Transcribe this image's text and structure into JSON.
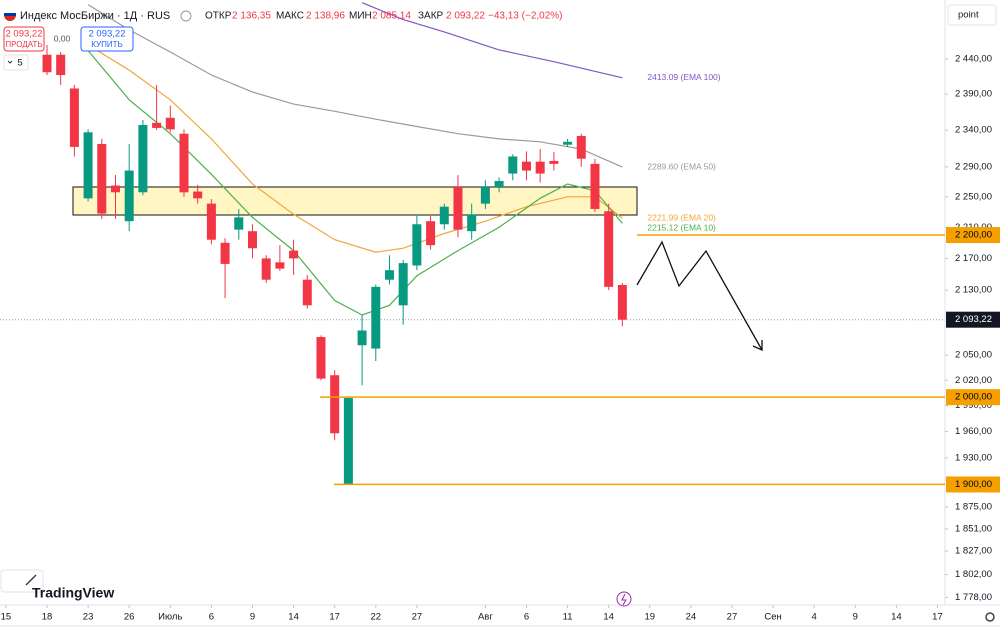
{
  "header": {
    "symbol": "Индекс МосБиржи · 1Д · RUS",
    "open_label": "ОТКР",
    "open": "2 136,35",
    "high_label": "МАКС",
    "high": "2 138,96",
    "low_label": "МИН",
    "low": "2 085,14",
    "close_label": "ЗАКР",
    "close": "2 093,22",
    "change": "−43,13 (−2,02%)"
  },
  "trade": {
    "sell_price": "2 093,22",
    "sell": "ПРОДАТЬ",
    "spread": "0,00",
    "buy_price": "2 093,22",
    "buy": "КУПИТЬ"
  },
  "interval": "5",
  "scale_mode": "point",
  "logo": "TradingView",
  "chart_data": {
    "type": "candlestick",
    "log_scale": true,
    "grid": false,
    "up_color": "#089981",
    "down_color": "#f23645",
    "ylim": [
      1770,
      2526
    ],
    "yticks": [
      {
        "value": 2440,
        "label": "2 440,00"
      },
      {
        "value": 2390,
        "label": "2 390,00"
      },
      {
        "value": 2340,
        "label": "2 340,00"
      },
      {
        "value": 2290,
        "label": "2 290,00"
      },
      {
        "value": 2250,
        "label": "2 250,00"
      },
      {
        "value": 2210,
        "label": "2 210,00"
      },
      {
        "value": 2170,
        "label": "2 170,00"
      },
      {
        "value": 2130,
        "label": "2 130,00"
      },
      {
        "value": 2050,
        "label": "2 050,00"
      },
      {
        "value": 2020,
        "label": "2 020,00"
      },
      {
        "value": 1990,
        "label": "1 990,00"
      },
      {
        "value": 1960,
        "label": "1 960,00"
      },
      {
        "value": 1930,
        "label": "1 930,00"
      },
      {
        "value": 1875,
        "label": "1 875,00"
      },
      {
        "value": 1851,
        "label": "1 851,00"
      },
      {
        "value": 1827,
        "label": "1 827,00"
      },
      {
        "value": 1802,
        "label": "1 802,00"
      },
      {
        "value": 1778,
        "label": "1 778,00"
      }
    ],
    "xlim": [
      -3.43,
      65.55
    ],
    "xticks": [
      {
        "value": -3,
        "label": "15"
      },
      {
        "value": 0,
        "label": "18"
      },
      {
        "value": 3,
        "label": "23"
      },
      {
        "value": 6,
        "label": "26"
      },
      {
        "value": 9,
        "label": "Июль"
      },
      {
        "value": 12,
        "label": "6"
      },
      {
        "value": 15,
        "label": "9"
      },
      {
        "value": 18,
        "label": "14"
      },
      {
        "value": 21,
        "label": "17"
      },
      {
        "value": 24,
        "label": "22"
      },
      {
        "value": 27,
        "label": "27"
      },
      {
        "value": 32,
        "label": "Авг"
      },
      {
        "value": 35,
        "label": "6"
      },
      {
        "value": 38,
        "label": "11"
      },
      {
        "value": 41,
        "label": "14"
      },
      {
        "value": 44,
        "label": "19"
      },
      {
        "value": 47,
        "label": "24"
      },
      {
        "value": 50,
        "label": "27"
      },
      {
        "value": 53,
        "label": "Сен"
      },
      {
        "value": 56,
        "label": "4"
      },
      {
        "value": 59,
        "label": "9"
      },
      {
        "value": 62,
        "label": "14"
      },
      {
        "value": 65,
        "label": "17"
      }
    ],
    "candles": {
      "open": [
        2446,
        2446,
        2398,
        2248,
        2321,
        2265,
        2218,
        2256,
        2350,
        2357,
        2335,
        2257,
        2241,
        2190,
        2207,
        2205,
        2170,
        2165,
        2180,
        2143,
        2072,
        2026,
        1900,
        2062,
        2058,
        2143,
        2111,
        2161,
        2218,
        2214,
        2263,
        2205,
        2241,
        2263,
        2281,
        2297,
        2297,
        2298,
        2320,
        2332,
        2294,
        2231,
        2136.35
      ],
      "high": [
        2460,
        2450,
        2403,
        2341,
        2328,
        2279,
        2321,
        2354,
        2403,
        2374,
        2341,
        2266,
        2247,
        2196,
        2234,
        2214,
        2174,
        2187,
        2194,
        2149,
        2074,
        2032,
        2000,
        2099,
        2137,
        2174,
        2168,
        2227,
        2227,
        2241,
        2279,
        2241,
        2272,
        2276,
        2307,
        2311,
        2314,
        2310,
        2328,
        2335,
        2301,
        2241,
        2138.96
      ],
      "low": [
        2417,
        2403,
        2304,
        2244,
        2221,
        2221,
        2205,
        2252,
        2340,
        2337,
        2250,
        2241,
        2188,
        2120,
        2194,
        2170,
        2139,
        2154,
        2149,
        2107,
        2020,
        1950,
        1900,
        2014,
        2043,
        2137,
        2087,
        2155,
        2181,
        2207,
        2197,
        2194,
        2234,
        2256,
        2272,
        2272,
        2269,
        2285,
        2317,
        2290,
        2230,
        2130,
        2085.14
      ],
      "close": [
        2421,
        2417,
        2317,
        2337,
        2228,
        2256,
        2285,
        2347,
        2343,
        2341,
        2256,
        2248,
        2194,
        2163,
        2223,
        2183,
        2143,
        2157,
        2170,
        2111,
        2022,
        1958,
        1999,
        2080,
        2134,
        2155,
        2164,
        2214,
        2187,
        2237,
        2207,
        2227,
        2263,
        2271,
        2304,
        2285,
        2281,
        2294,
        2324,
        2301,
        2234,
        2134,
        2093.22
      ]
    },
    "series": [
      {
        "name": "2413.09 (EMA 100)",
        "color": "#7e57c2",
        "x": [
          23,
          26,
          29,
          33,
          37,
          42
        ],
        "values": [
          2522,
          2497,
          2479,
          2453,
          2436,
          2413.09
        ]
      },
      {
        "name": "2289.60 (EMA 50)",
        "color": "#9a9a9a",
        "x": [
          3,
          6,
          9,
          12,
          15,
          18,
          21,
          24,
          27,
          30,
          33,
          36,
          39,
          42
        ],
        "values": [
          2519,
          2482,
          2450,
          2417,
          2393,
          2376,
          2366,
          2355,
          2345,
          2335,
          2328,
          2324,
          2314,
          2289.6
        ]
      },
      {
        "name": "2221.99 (EMA 20)",
        "color": "#f5a53a",
        "x": [
          3,
          6,
          9,
          12,
          15,
          18,
          21,
          24,
          26,
          29,
          32,
          35,
          38,
          40,
          42
        ],
        "values": [
          2460,
          2424,
          2382,
          2328,
          2267,
          2227,
          2194,
          2178,
          2183,
          2202,
          2218,
          2237,
          2250,
          2250,
          2221.99
        ]
      },
      {
        "name": "2215.12 (EMA 10)",
        "color": "#4caf50",
        "x": [
          3,
          6,
          9,
          12,
          15,
          18,
          21,
          23,
          25,
          27,
          30,
          33,
          36,
          38,
          40,
          42
        ],
        "values": [
          2452,
          2382,
          2335,
          2280,
          2223,
          2180,
          2117,
          2099,
          2111,
          2148,
          2180,
          2210,
          2248,
          2267,
          2258,
          2215.12
        ]
      }
    ],
    "levels": [
      {
        "value": 2200,
        "label": "2 200,00",
        "color": "#f5a000"
      },
      {
        "value": 2000,
        "label": "2 000,00",
        "color": "#f5a000"
      },
      {
        "value": 1900,
        "label": "1 900,00",
        "color": "#f5a000"
      }
    ],
    "last_price": {
      "value": 2093.22,
      "label": "2 093,22"
    }
  }
}
